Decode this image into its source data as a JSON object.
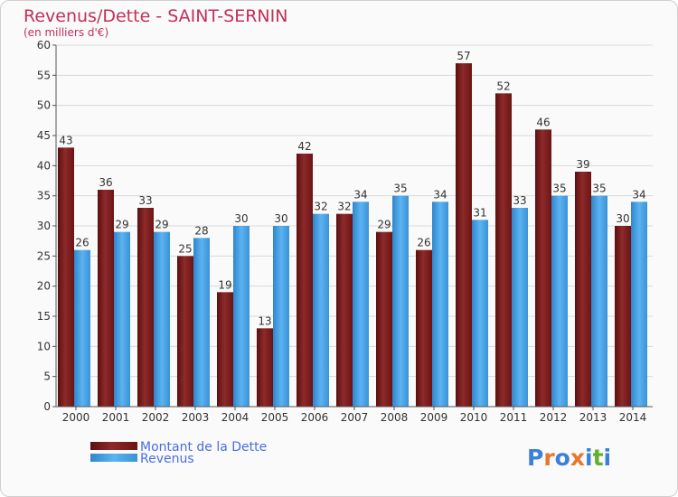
{
  "chart_data": {
    "type": "bar",
    "title": "Revenus/Dette - SAINT-SERNIN",
    "subtitle": "(en milliers d'€)",
    "categories": [
      "2000",
      "2001",
      "2002",
      "2003",
      "2004",
      "2005",
      "2006",
      "2007",
      "2008",
      "2009",
      "2010",
      "2011",
      "2012",
      "2013",
      "2014"
    ],
    "series": [
      {
        "name": "Montant de la Dette",
        "color": "#7a1c1c",
        "values": [
          43,
          36,
          33,
          25,
          19,
          13,
          42,
          32,
          29,
          26,
          57,
          52,
          46,
          39,
          30
        ]
      },
      {
        "name": "Revenus",
        "color": "#4aa3e8",
        "values": [
          26,
          29,
          29,
          28,
          30,
          30,
          32,
          34,
          35,
          34,
          31,
          33,
          35,
          35,
          34
        ]
      }
    ],
    "ylim": [
      0,
      60
    ],
    "yticks": [
      0,
      5,
      10,
      15,
      20,
      25,
      30,
      35,
      40,
      45,
      50,
      55,
      60
    ],
    "grid": true,
    "legend": "bottom-left"
  },
  "logo": {
    "text": "Proxiti",
    "letters": [
      "P",
      "r",
      "o",
      "x",
      "i",
      "t",
      "i"
    ],
    "colors": [
      "#3b7fd9",
      "#e8762b",
      "#3b7fd9",
      "#e8762b",
      "#3b7fd9",
      "#5fb030",
      "#3b7fd9"
    ]
  }
}
